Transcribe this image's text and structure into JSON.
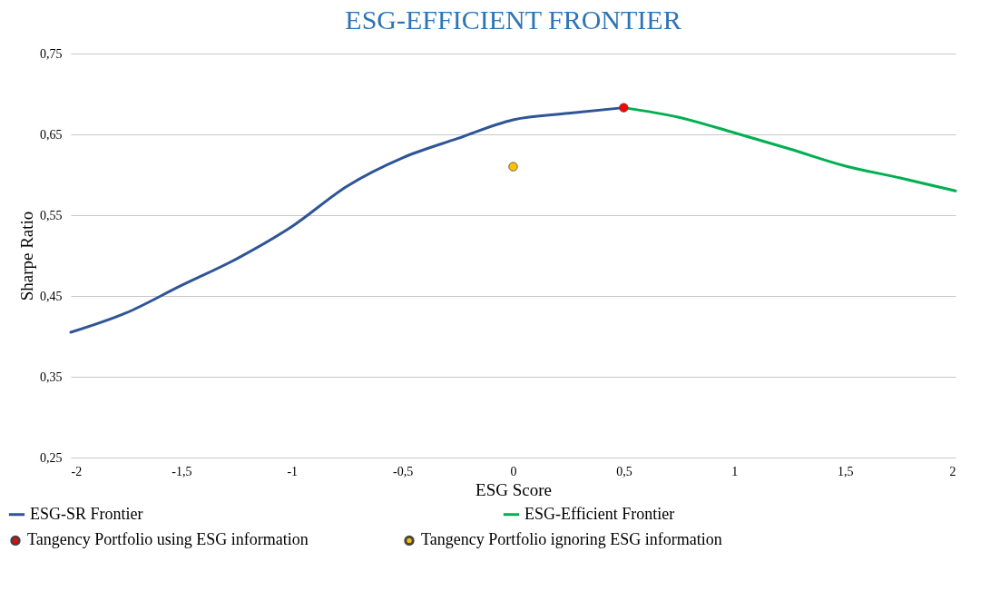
{
  "chart_data": {
    "type": "line",
    "title": "ESG-EFFICIENT FRONTIER",
    "xlabel": "ESG Score",
    "ylabel": "Sharpe Ratio",
    "xlim": [
      -2,
      2
    ],
    "xticks": [
      -2,
      {
        "value": -1.5,
        "label": "-1,5"
      },
      -1,
      {
        "value": -0.5,
        "label": "-0,5"
      },
      0,
      {
        "value": 0.5,
        "label": "0,5"
      },
      1,
      {
        "value": 1.5,
        "label": "1,5"
      },
      2
    ],
    "ylim": [
      0.25,
      0.75
    ],
    "yticks": [
      {
        "value": 0.25,
        "label": "0,25"
      },
      {
        "value": 0.35,
        "label": "0,35"
      },
      {
        "value": 0.45,
        "label": "0,45"
      },
      {
        "value": 0.55,
        "label": "0,55"
      },
      {
        "value": 0.65,
        "label": "0,65"
      },
      {
        "value": 0.75,
        "label": "0,75"
      }
    ],
    "grid": "y",
    "legend": "bottom",
    "marker": "none",
    "line_style": "solid",
    "series": [
      {
        "name": "ESG-SR Frontier",
        "color": "#2f5597",
        "x": [
          -2,
          -1.75,
          -1.5,
          -1.25,
          -1,
          -0.75,
          -0.5,
          -0.25,
          0,
          0.25,
          0.5
        ],
        "values": [
          0.405,
          0.429,
          0.463,
          0.496,
          0.536,
          0.586,
          0.621,
          0.645,
          0.668,
          0.676,
          0.683
        ]
      },
      {
        "name": "ESG-Efficient Frontier",
        "color": "#00b050",
        "x": [
          0.5,
          0.75,
          1,
          1.25,
          1.5,
          1.75,
          2
        ],
        "values": [
          0.683,
          0.671,
          0.652,
          0.632,
          0.611,
          0.596,
          0.58
        ]
      },
      {
        "name": "Tangency Portfolio using ESG information",
        "type": "scatter",
        "color": "#ff0000",
        "marker": "circle",
        "x": [
          0.5
        ],
        "values": [
          0.683
        ]
      },
      {
        "name": "Tangency Portfolio ignoring ESG information",
        "type": "scatter",
        "color": "#ffc000",
        "marker": "circle",
        "x": [
          0
        ],
        "values": [
          0.61
        ]
      }
    ]
  }
}
